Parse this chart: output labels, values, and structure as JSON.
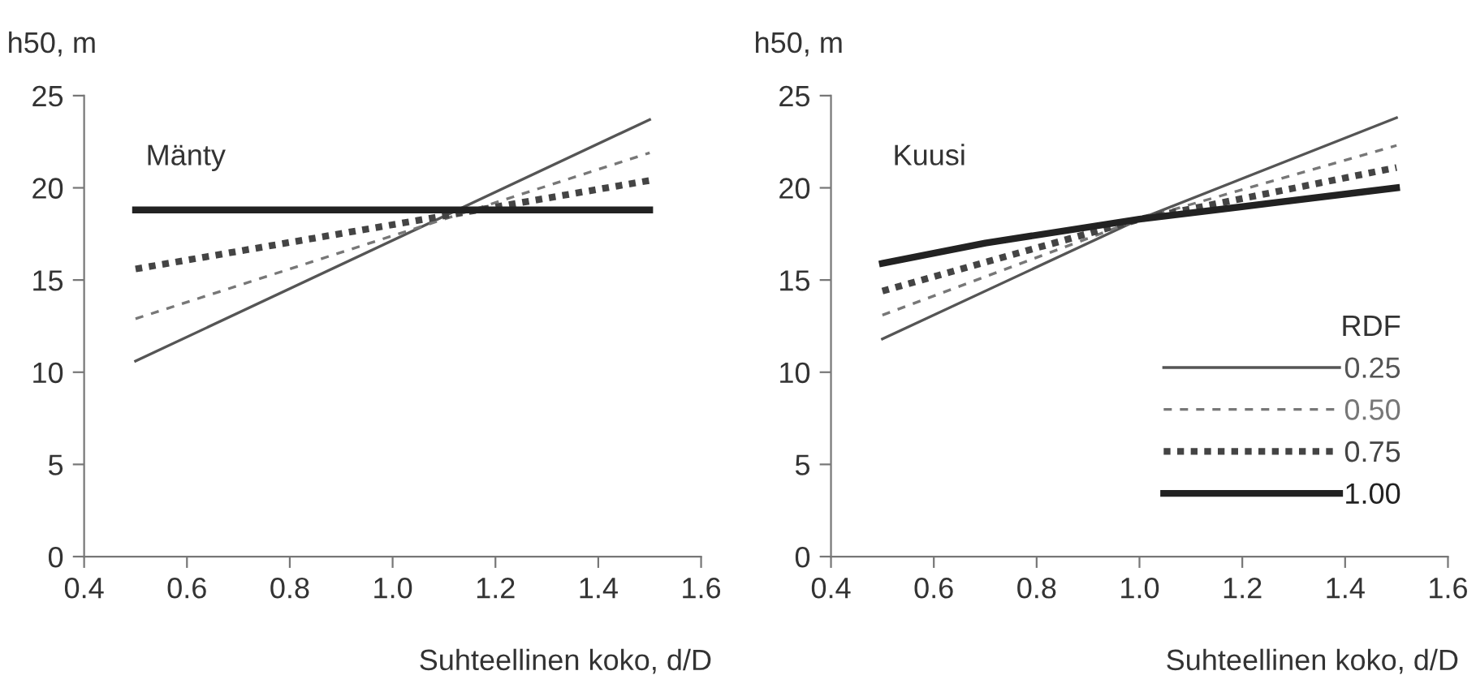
{
  "chart_data": [
    {
      "type": "line",
      "title": "Mänty",
      "ylabel": "h50, m",
      "xlabel": "Suhteellinen koko, d/D",
      "xlim": [
        0.4,
        1.6
      ],
      "ylim": [
        0,
        25
      ],
      "xticks": [
        0.4,
        0.6,
        0.8,
        {
          "value": 1,
          "label": "1.0"
        },
        1.2,
        1.4,
        1.6
      ],
      "yticks": [
        0,
        5,
        10,
        15,
        20,
        25
      ],
      "grid": false,
      "legend": false,
      "marker": "none",
      "series": [
        {
          "color": "#555555",
          "line_style": "solid",
          "x": [
            0.5,
            1.5
          ],
          "values": [
            10.6,
            23.7
          ]
        },
        {
          "color": "#777777",
          "line_style": "dashed",
          "x": [
            0.5,
            1.5
          ],
          "values": [
            12.9,
            21.9
          ]
        },
        {
          "color": "#444444",
          "line_style": "dashed",
          "x": [
            0.5,
            1.5
          ],
          "values": [
            15.6,
            20.4
          ]
        },
        {
          "color": "#222222",
          "line_style": "solid",
          "x": [
            0.5,
            1.5
          ],
          "values": [
            18.8,
            18.8
          ]
        }
      ]
    },
    {
      "type": "line",
      "title": "Kuusi",
      "ylabel": "h50, m",
      "xlabel": "Suhteellinen koko, d/D",
      "legend_title": "RDF",
      "xlim": [
        0.4,
        1.6
      ],
      "ylim": [
        0,
        25
      ],
      "xticks": [
        0.4,
        0.6,
        0.8,
        {
          "value": 1,
          "label": "1.0"
        },
        1.2,
        1.4,
        1.6
      ],
      "yticks": [
        0,
        5,
        10,
        15,
        20,
        25
      ],
      "grid": false,
      "legend": "bottom right",
      "marker": "none",
      "series": [
        {
          "name": "0.25",
          "color": "#555555",
          "line_style": "solid",
          "x": [
            0.5,
            1.0,
            1.5
          ],
          "values": [
            11.8,
            18.3,
            23.8
          ]
        },
        {
          "name": "0.50",
          "color": "#777777",
          "line_style": "dashed",
          "x": [
            0.5,
            1.0,
            1.5
          ],
          "values": [
            13.1,
            18.3,
            22.3
          ]
        },
        {
          "name": "0.75",
          "color": "#444444",
          "line_style": "dashed",
          "x": [
            0.5,
            1.0,
            1.5
          ],
          "values": [
            14.4,
            18.3,
            21.1
          ]
        },
        {
          "name": "1.00",
          "color": "#222222",
          "line_style": "solid",
          "x": [
            0.5,
            0.7,
            1.0,
            1.5
          ],
          "values": [
            15.9,
            17.0,
            18.3,
            20.0
          ]
        }
      ]
    }
  ]
}
